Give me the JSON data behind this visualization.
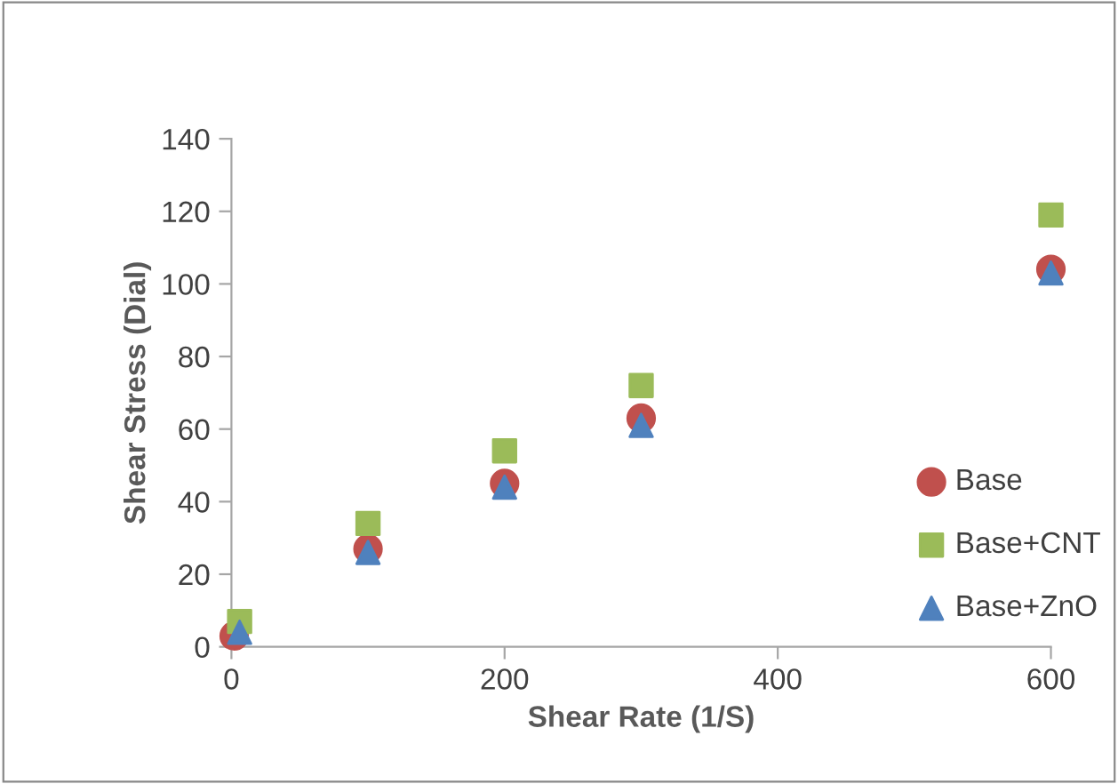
{
  "chart_data": {
    "type": "scatter",
    "xlabel": "Shear Rate (1/S)",
    "ylabel": "Shear Stress (Dial)",
    "xlim": [
      0,
      600
    ],
    "xticks": [
      0,
      200,
      400,
      600
    ],
    "ylim": [
      0,
      140
    ],
    "yticks": [
      0,
      20,
      40,
      60,
      80,
      100,
      120,
      140
    ],
    "grid": false,
    "legend": "right",
    "series": [
      {
        "name": "Base",
        "color": "#c0504d",
        "marker": "circle",
        "x": [
          2,
          100,
          200,
          300,
          600
        ],
        "values": [
          3,
          27,
          45,
          63,
          104
        ]
      },
      {
        "name": "Base+CNT",
        "color": "#9bbb59",
        "marker": "square",
        "x": [
          6,
          100,
          200,
          300,
          600
        ],
        "values": [
          7,
          34,
          54,
          72,
          119
        ]
      },
      {
        "name": "Base+ZnO",
        "color": "#4f81bd",
        "marker": "triangle",
        "x": [
          6,
          100,
          200,
          300,
          600
        ],
        "values": [
          4,
          26,
          44,
          61,
          103
        ]
      }
    ]
  }
}
